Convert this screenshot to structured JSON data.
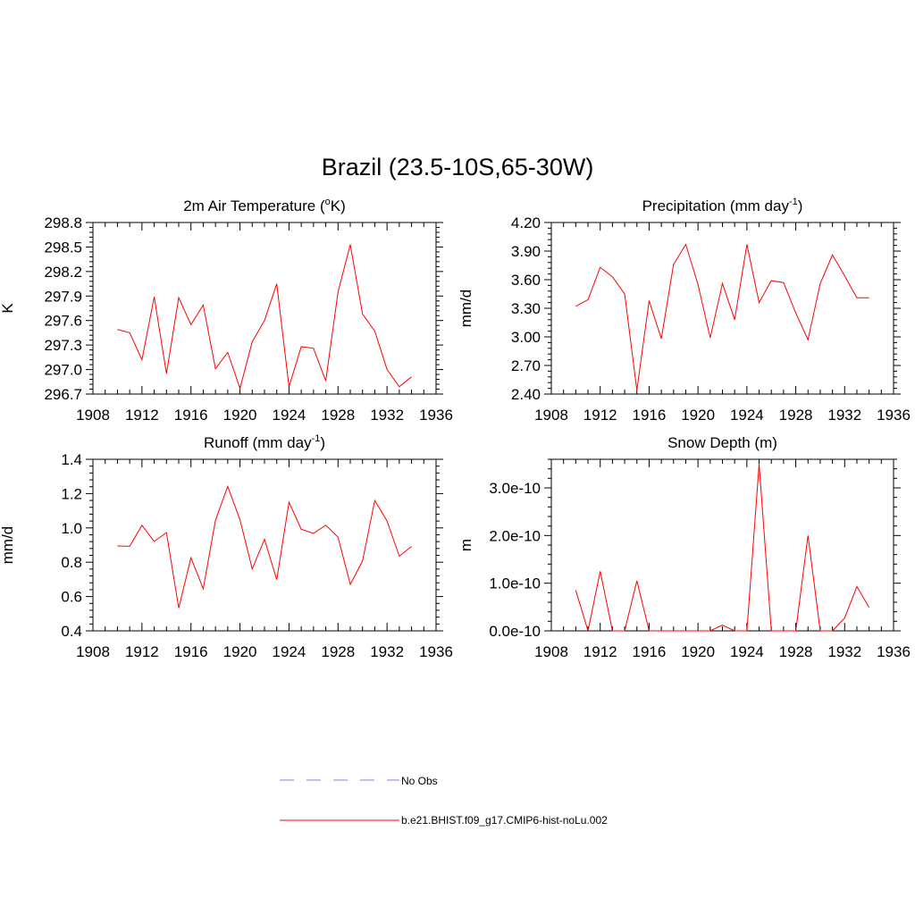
{
  "title": "Brazil (23.5-10S,65-30W)",
  "colors": {
    "model": "#ff0000",
    "obs": "#9999ff",
    "axis": "#000000",
    "background": "#ffffff"
  },
  "legend": {
    "placement": "bottom-center",
    "items": [
      {
        "label": "No Obs",
        "style": "dashed",
        "color": "#9999ff"
      },
      {
        "label": "b.e21.BHIST.f09_g17.CMIP6-hist-noLu.002",
        "style": "solid",
        "color": "#ff0000"
      }
    ]
  },
  "chart_data": [
    {
      "type": "line",
      "title": "2m Air Temperature",
      "title_unit_base": "K",
      "title_unit_sup": "o",
      "ylabel": "K",
      "xlim": [
        1908,
        1936
      ],
      "xticks": [
        "1908",
        "1912",
        "1916",
        "1920",
        "1924",
        "1928",
        "1932",
        "1936"
      ],
      "ylim": [
        296.7,
        298.8
      ],
      "yticks": [
        "296.7",
        "297.0",
        "297.3",
        "297.6",
        "297.9",
        "298.2",
        "298.5",
        "298.8"
      ],
      "x": [
        1910,
        1911,
        1912,
        1913,
        1914,
        1915,
        1916,
        1917,
        1918,
        1919,
        1920,
        1921,
        1922,
        1923,
        1924,
        1925,
        1926,
        1927,
        1928,
        1929,
        1930,
        1931,
        1932,
        1933,
        1934
      ],
      "series": [
        {
          "name": "b.e21.BHIST.f09_g17.CMIP6-hist-noLu.002",
          "values": [
            297.49,
            297.45,
            297.12,
            297.89,
            296.95,
            297.88,
            297.55,
            297.79,
            297.01,
            297.21,
            296.77,
            297.34,
            297.6,
            298.05,
            296.79,
            297.28,
            297.26,
            296.86,
            297.95,
            298.53,
            297.68,
            297.47,
            297.0,
            296.79,
            296.91
          ]
        }
      ]
    },
    {
      "type": "line",
      "title": "Precipitation (mm day",
      "title_sup": "-1",
      "title_after": ")",
      "ylabel": "mm/d",
      "xlim": [
        1908,
        1936
      ],
      "xticks": [
        "1908",
        "1912",
        "1916",
        "1920",
        "1924",
        "1928",
        "1932",
        "1936"
      ],
      "ylim": [
        2.4,
        4.2
      ],
      "yticks": [
        "2.40",
        "2.70",
        "3.00",
        "3.30",
        "3.60",
        "3.90",
        "4.20"
      ],
      "x": [
        1910,
        1911,
        1912,
        1913,
        1914,
        1915,
        1916,
        1917,
        1918,
        1919,
        1920,
        1921,
        1922,
        1923,
        1924,
        1925,
        1926,
        1927,
        1928,
        1929,
        1930,
        1931,
        1932,
        1933,
        1934
      ],
      "series": [
        {
          "name": "b.e21.BHIST.f09_g17.CMIP6-hist-noLu.002",
          "values": [
            3.32,
            3.39,
            3.73,
            3.63,
            3.45,
            2.44,
            3.38,
            2.98,
            3.76,
            3.97,
            3.55,
            2.99,
            3.56,
            3.18,
            3.97,
            3.36,
            3.59,
            3.57,
            3.25,
            2.97,
            3.56,
            3.86,
            3.64,
            3.41,
            3.41
          ]
        }
      ]
    },
    {
      "type": "line",
      "title": "Runoff (mm day",
      "title_sup": "-1",
      "title_after": ")",
      "ylabel": "mm/d",
      "xlim": [
        1908,
        1936
      ],
      "xticks": [
        "1908",
        "1912",
        "1916",
        "1920",
        "1924",
        "1928",
        "1932",
        "1936"
      ],
      "ylim": [
        0.4,
        1.4
      ],
      "yticks": [
        "0.4",
        "0.6",
        "0.8",
        "1.0",
        "1.2",
        "1.4"
      ],
      "x": [
        1910,
        1911,
        1912,
        1913,
        1914,
        1915,
        1916,
        1917,
        1918,
        1919,
        1920,
        1921,
        1922,
        1923,
        1924,
        1925,
        1926,
        1927,
        1928,
        1929,
        1930,
        1931,
        1932,
        1933,
        1934
      ],
      "series": [
        {
          "name": "b.e21.BHIST.f09_g17.CMIP6-hist-noLu.002",
          "values": [
            0.895,
            0.893,
            1.015,
            0.921,
            0.973,
            0.533,
            0.826,
            0.645,
            1.045,
            1.242,
            1.047,
            0.761,
            0.934,
            0.698,
            1.15,
            0.992,
            0.968,
            1.016,
            0.946,
            0.671,
            0.807,
            1.16,
            1.04,
            0.835,
            0.892
          ]
        }
      ]
    },
    {
      "type": "line",
      "title": "Snow Depth (m)",
      "ylabel": "m",
      "xlim": [
        1908,
        1936
      ],
      "xticks": [
        "1908",
        "1912",
        "1916",
        "1920",
        "1924",
        "1928",
        "1932",
        "1936"
      ],
      "ylim": [
        0,
        3.6e-10
      ],
      "yticks": [
        "0.0e-10",
        "1.0e-10",
        "2.0e-10",
        "3.0e-10"
      ],
      "ytick_values": [
        0,
        1e-10,
        2e-10,
        3e-10
      ],
      "x": [
        1910,
        1911,
        1912,
        1913,
        1914,
        1915,
        1916,
        1917,
        1918,
        1919,
        1920,
        1921,
        1922,
        1923,
        1924,
        1925,
        1926,
        1927,
        1928,
        1929,
        1930,
        1931,
        1932,
        1933,
        1934
      ],
      "series": [
        {
          "name": "b.e21.BHIST.f09_g17.CMIP6-hist-noLu.002",
          "values": [
            8.5e-11,
            0,
            1.25e-10,
            0,
            0,
            1.05e-10,
            0,
            0,
            0,
            0,
            0,
            0,
            1.2e-11,
            0,
            0,
            3.5e-10,
            0,
            0,
            0,
            2e-10,
            0,
            0,
            2.7e-11,
            9.3e-11,
            4.9e-11
          ]
        }
      ]
    }
  ]
}
